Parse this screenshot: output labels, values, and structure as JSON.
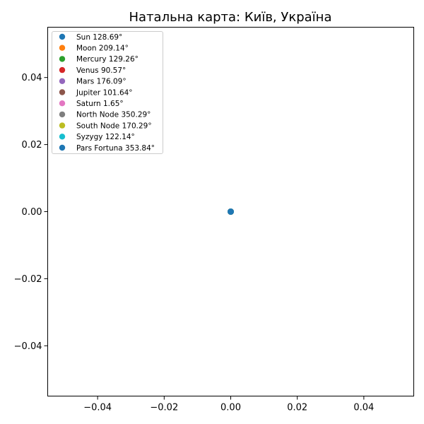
{
  "chart_data": {
    "type": "scatter",
    "title": "Натальна карта: Київ, Україна",
    "xlim": [
      -0.055,
      0.055
    ],
    "ylim": [
      -0.055,
      0.055
    ],
    "x_ticks": [
      -0.04,
      -0.02,
      0.0,
      0.02,
      0.04
    ],
    "x_tick_labels": [
      "−0.04",
      "−0.02",
      "0.00",
      "0.02",
      "0.04"
    ],
    "y_ticks": [
      0.04,
      0.02,
      0.0,
      -0.02,
      -0.04
    ],
    "y_tick_labels": [
      "0.04",
      "0.02",
      "0.00",
      "−0.02",
      "−0.04"
    ],
    "grid": false,
    "legend_position": "upper-left",
    "series": [
      {
        "label": "Sun 128.69°",
        "color": "#1f77b4",
        "x": 0,
        "y": 0
      },
      {
        "label": "Moon 209.14°",
        "color": "#ff7f0e",
        "x": 0,
        "y": 0
      },
      {
        "label": "Mercury 129.26°",
        "color": "#2ca02c",
        "x": 0,
        "y": 0
      },
      {
        "label": "Venus 90.57°",
        "color": "#d62728",
        "x": 0,
        "y": 0
      },
      {
        "label": "Mars 176.09°",
        "color": "#9467bd",
        "x": 0,
        "y": 0
      },
      {
        "label": "Jupiter 101.64°",
        "color": "#8c564b",
        "x": 0,
        "y": 0
      },
      {
        "label": "Saturn 1.65°",
        "color": "#e377c2",
        "x": 0,
        "y": 0
      },
      {
        "label": "North Node 350.29°",
        "color": "#7f7f7f",
        "x": 0,
        "y": 0
      },
      {
        "label": "South Node 170.29°",
        "color": "#bcbd22",
        "x": 0,
        "y": 0
      },
      {
        "label": "Syzygy 122.14°",
        "color": "#17becf",
        "x": 0,
        "y": 0
      },
      {
        "label": "Pars Fortuna 353.84°",
        "color": "#1f77b4",
        "x": 0,
        "y": 0
      }
    ]
  }
}
